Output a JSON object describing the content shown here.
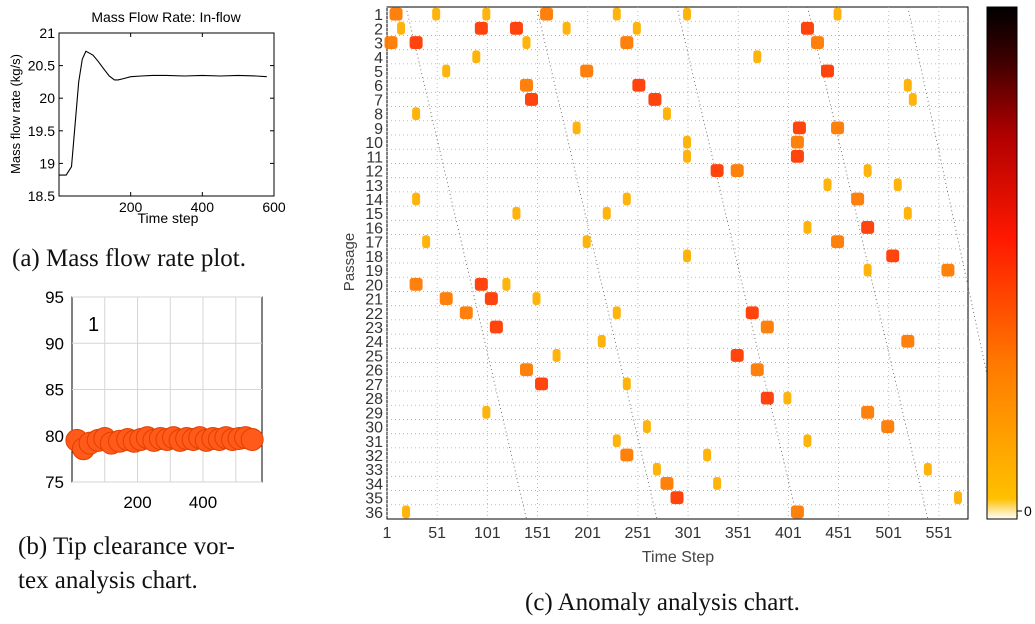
{
  "chart_data": [
    {
      "type": "line",
      "title": "Mass Flow Rate: In-flow",
      "xlabel": "Time step",
      "ylabel": "Mass flow rate (kg/s)",
      "xlim": [
        0,
        600
      ],
      "ylim": [
        18.5,
        21
      ],
      "xticks": [
        "200",
        "400",
        "600"
      ],
      "yticks": [
        "18.5",
        "19",
        "19.5",
        "20",
        "20.5",
        "21"
      ],
      "x": [
        0,
        20,
        35,
        45,
        55,
        65,
        75,
        85,
        95,
        110,
        125,
        140,
        155,
        165,
        180,
        200,
        230,
        260,
        300,
        350,
        400,
        450,
        500,
        550,
        580
      ],
      "y": [
        18.82,
        18.82,
        18.95,
        19.6,
        20.25,
        20.6,
        20.72,
        20.69,
        20.66,
        20.56,
        20.45,
        20.34,
        20.28,
        20.28,
        20.3,
        20.33,
        20.34,
        20.35,
        20.35,
        20.34,
        20.35,
        20.34,
        20.35,
        20.34,
        20.33
      ],
      "grid": false,
      "caption": "(a) Mass flow rate plot."
    },
    {
      "type": "scatter",
      "annotation": "1",
      "xlim": [
        0,
        580
      ],
      "ylim": [
        75,
        95
      ],
      "xticks": [
        "200",
        "400"
      ],
      "yticks": [
        "75",
        "80",
        "85",
        "90",
        "95"
      ],
      "x": [
        15,
        35,
        55,
        80,
        100,
        120,
        145,
        170,
        190,
        210,
        230,
        250,
        270,
        290,
        310,
        330,
        350,
        370,
        390,
        410,
        430,
        450,
        470,
        490,
        510,
        530,
        550
      ],
      "y": [
        79.5,
        78.6,
        79.2,
        79.5,
        79.7,
        79.2,
        79.4,
        79.6,
        79.4,
        79.6,
        79.8,
        79.5,
        79.7,
        79.6,
        79.8,
        79.5,
        79.7,
        79.6,
        79.8,
        79.5,
        79.7,
        79.6,
        79.8,
        79.6,
        79.7,
        79.8,
        79.6
      ],
      "grid": true,
      "color": "#ff5a1a",
      "caption_lines": [
        "(b) Tip clearance vor-",
        "tex analysis chart."
      ]
    },
    {
      "type": "heatmap",
      "xlabel": "Time Step",
      "ylabel": "Passage",
      "xticks": [
        "1",
        "51",
        "101",
        "151",
        "201",
        "251",
        "301",
        "351",
        "401",
        "451",
        "501",
        "551"
      ],
      "yticks": [
        "1",
        "2",
        "3",
        "4",
        "5",
        "6",
        "7",
        "8",
        "9",
        "10",
        "11",
        "12",
        "13",
        "14",
        "15",
        "16",
        "17",
        "18",
        "19",
        "20",
        "21",
        "22",
        "23",
        "24",
        "25",
        "26",
        "27",
        "28",
        "29",
        "30",
        "31",
        "32",
        "33",
        "34",
        "35",
        "36"
      ],
      "xlim": [
        1,
        580
      ],
      "rows": 36,
      "colorbar_label": "0",
      "colormap": [
        "#ffffff",
        "#ffb000",
        "#ff7a00",
        "#ff2000",
        "#b00000",
        "#400000",
        "#000000"
      ],
      "grid": true,
      "caption": "(c) Anomaly analysis chart.",
      "cells": [
        [
          1,
          10,
          6
        ],
        [
          1,
          50,
          3
        ],
        [
          1,
          100,
          5
        ],
        [
          1,
          160,
          6
        ],
        [
          1,
          230,
          3
        ],
        [
          1,
          300,
          4
        ],
        [
          1,
          450,
          5
        ],
        [
          2,
          15,
          5
        ],
        [
          2,
          95,
          7
        ],
        [
          2,
          130,
          8
        ],
        [
          2,
          420,
          8
        ],
        [
          2,
          180,
          3
        ],
        [
          2,
          250,
          3
        ],
        [
          3,
          5,
          6
        ],
        [
          3,
          30,
          7
        ],
        [
          3,
          140,
          4
        ],
        [
          3,
          240,
          6
        ],
        [
          3,
          430,
          6
        ],
        [
          4,
          90,
          4
        ],
        [
          4,
          370,
          3
        ],
        [
          5,
          200,
          6
        ],
        [
          5,
          440,
          7
        ],
        [
          5,
          60,
          3
        ],
        [
          6,
          140,
          6
        ],
        [
          6,
          252,
          8
        ],
        [
          6,
          520,
          5
        ],
        [
          7,
          145,
          7
        ],
        [
          7,
          268,
          7
        ],
        [
          7,
          525,
          5
        ],
        [
          8,
          280,
          4
        ],
        [
          8,
          30,
          3
        ],
        [
          9,
          190,
          4
        ],
        [
          9,
          412,
          7
        ],
        [
          9,
          450,
          6
        ],
        [
          10,
          300,
          5
        ],
        [
          10,
          410,
          6
        ],
        [
          11,
          410,
          7
        ],
        [
          11,
          300,
          3
        ],
        [
          12,
          350,
          6
        ],
        [
          12,
          330,
          7
        ],
        [
          12,
          480,
          3
        ],
        [
          13,
          510,
          4
        ],
        [
          13,
          440,
          4
        ],
        [
          14,
          240,
          3
        ],
        [
          14,
          470,
          6
        ],
        [
          14,
          30,
          3
        ],
        [
          15,
          130,
          3
        ],
        [
          15,
          220,
          4
        ],
        [
          15,
          520,
          3
        ],
        [
          16,
          420,
          5
        ],
        [
          16,
          480,
          7
        ],
        [
          17,
          40,
          4
        ],
        [
          17,
          450,
          6
        ],
        [
          17,
          200,
          3
        ],
        [
          18,
          505,
          7
        ],
        [
          18,
          300,
          3
        ],
        [
          19,
          560,
          6
        ],
        [
          19,
          480,
          3
        ],
        [
          20,
          30,
          6
        ],
        [
          20,
          95,
          7
        ],
        [
          20,
          120,
          3
        ],
        [
          21,
          60,
          6
        ],
        [
          21,
          105,
          7
        ],
        [
          21,
          150,
          4
        ],
        [
          22,
          80,
          6
        ],
        [
          22,
          365,
          7
        ],
        [
          22,
          230,
          3
        ],
        [
          23,
          110,
          7
        ],
        [
          23,
          380,
          6
        ],
        [
          24,
          215,
          4
        ],
        [
          24,
          520,
          6
        ],
        [
          25,
          170,
          3
        ],
        [
          25,
          350,
          7
        ],
        [
          26,
          140,
          6
        ],
        [
          26,
          370,
          6
        ],
        [
          27,
          155,
          8
        ],
        [
          27,
          240,
          3
        ],
        [
          28,
          380,
          7
        ],
        [
          28,
          400,
          3
        ],
        [
          29,
          480,
          6
        ],
        [
          29,
          100,
          3
        ],
        [
          30,
          500,
          6
        ],
        [
          30,
          260,
          3
        ],
        [
          31,
          230,
          3
        ],
        [
          31,
          420,
          3
        ],
        [
          32,
          240,
          6
        ],
        [
          32,
          320,
          3
        ],
        [
          33,
          270,
          3
        ],
        [
          33,
          540,
          3
        ],
        [
          34,
          280,
          6
        ],
        [
          34,
          330,
          3
        ],
        [
          35,
          290,
          7
        ],
        [
          35,
          570,
          3
        ],
        [
          36,
          410,
          6
        ],
        [
          36,
          20,
          3
        ]
      ]
    }
  ]
}
